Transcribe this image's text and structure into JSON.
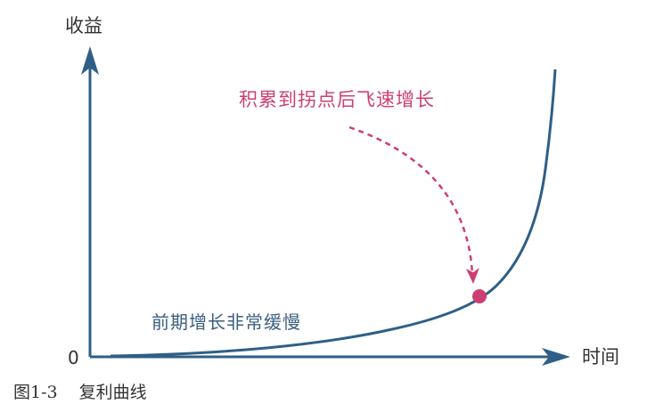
{
  "axes": {
    "y_label": "收益",
    "x_label": "时间",
    "origin": "0"
  },
  "annotations": {
    "inflection": "积累到拐点后飞速增长",
    "slow_growth": "前期增长非常缓慢"
  },
  "caption": {
    "number": "图1-3",
    "title": "复利曲线"
  },
  "colors": {
    "axis": "#2f5f86",
    "curve": "#2f5f86",
    "highlight": "#cc3f73",
    "text": "#333333"
  }
}
